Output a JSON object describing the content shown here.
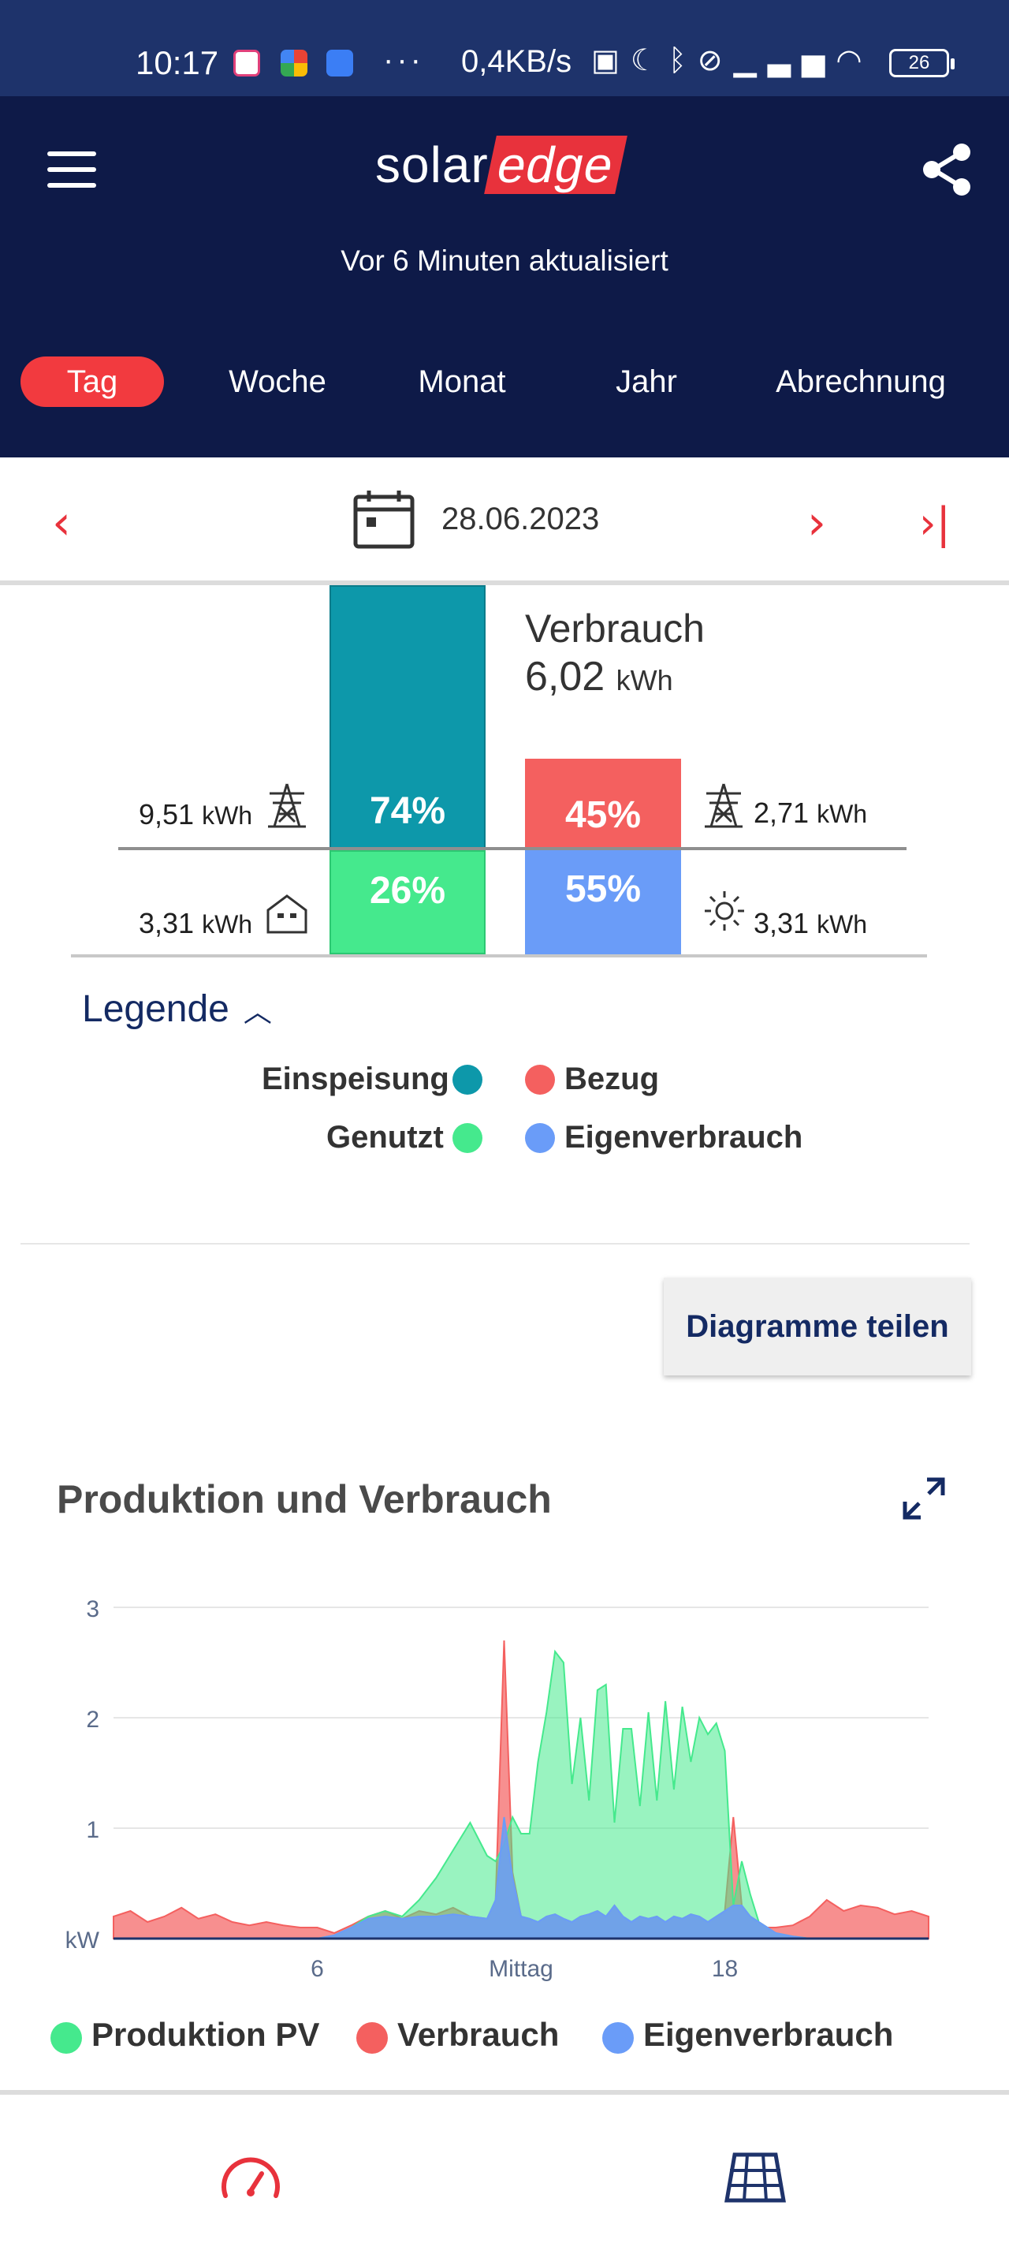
{
  "status_bar": {
    "time": "10:17",
    "more": "···",
    "network_speed": "0,4KB/s",
    "battery": "26"
  },
  "header": {
    "logo_part1": "solar",
    "logo_part2": "edge",
    "updated_text": "Vor 6 Minuten aktualisiert",
    "tabs": [
      {
        "label": "Tag",
        "active": true
      },
      {
        "label": "Woche",
        "active": false
      },
      {
        "label": "Monat",
        "active": false
      },
      {
        "label": "Jahr",
        "active": false
      },
      {
        "label": "Abrechnung",
        "active": false
      }
    ]
  },
  "date_nav": {
    "prev": "‹",
    "date": "28.06.2023",
    "next": "›",
    "last": "›|"
  },
  "energy": {
    "production": {
      "feed_in_value": "9,51",
      "feed_in_pct": "74%",
      "used_value": "3,31",
      "used_pct": "26%"
    },
    "consumption": {
      "title": "Verbrauch",
      "total": "6,02",
      "grid_value": "2,71",
      "grid_pct": "45%",
      "self_value": "3,31",
      "self_pct": "55%"
    },
    "unit": "kWh"
  },
  "legend": {
    "title": "Legende",
    "items": [
      {
        "label": "Einspeisung",
        "color": "#0d98aa"
      },
      {
        "label": "Bezug",
        "color": "#f4605f"
      },
      {
        "label": "Genutzt",
        "color": "#45e98d"
      },
      {
        "label": "Eigenverbrauch",
        "color": "#6a9cf8"
      }
    ]
  },
  "share_button": "Diagramme teilen",
  "chart_title": "Produktion und Verbrauch",
  "chart_data": {
    "type": "area",
    "title": "Produktion und Verbrauch",
    "ylabel": "kW",
    "ylim": [
      0,
      3
    ],
    "yticks": [
      "1",
      "2",
      "3"
    ],
    "xlim": [
      0,
      24
    ],
    "xticks": [
      {
        "x": 6,
        "label": "6"
      },
      {
        "x": 12,
        "label": "Mittag"
      },
      {
        "x": 18,
        "label": "18"
      }
    ],
    "x": [
      0,
      0.5,
      1,
      1.5,
      2,
      2.5,
      3,
      3.5,
      4,
      4.5,
      5,
      5.5,
      6,
      6.5,
      7,
      7.5,
      8,
      8.5,
      9,
      9.5,
      10,
      10.5,
      11,
      11.25,
      11.5,
      11.75,
      12,
      12.25,
      12.5,
      12.75,
      13,
      13.25,
      13.5,
      13.75,
      14,
      14.25,
      14.5,
      14.75,
      15,
      15.25,
      15.5,
      15.75,
      16,
      16.25,
      16.5,
      16.75,
      17,
      17.25,
      17.5,
      17.75,
      18,
      18.25,
      18.5,
      18.75,
      19,
      19.25,
      19.5,
      20,
      20.5,
      21,
      21.5,
      22,
      22.5,
      23,
      23.5,
      24
    ],
    "series": [
      {
        "name": "Produktion PV",
        "color": "#45e98d",
        "values": [
          0,
          0,
          0,
          0,
          0,
          0,
          0,
          0,
          0,
          0,
          0,
          0,
          0,
          0.03,
          0.1,
          0.2,
          0.25,
          0.2,
          0.35,
          0.55,
          0.8,
          1.05,
          0.75,
          0.7,
          0.85,
          1.1,
          0.95,
          0.95,
          1.6,
          2.05,
          2.6,
          2.5,
          1.4,
          2.0,
          1.25,
          2.25,
          2.3,
          1.05,
          1.9,
          1.9,
          1.2,
          2.05,
          1.25,
          2.15,
          1.35,
          2.1,
          1.6,
          2.0,
          1.85,
          1.95,
          1.7,
          0.3,
          0.7,
          0.4,
          0.15,
          0.1,
          0.05,
          0.02,
          0,
          0,
          0,
          0,
          0,
          0,
          0,
          0
        ]
      },
      {
        "name": "Verbrauch",
        "color": "#f4605f",
        "values": [
          0.2,
          0.25,
          0.15,
          0.2,
          0.28,
          0.18,
          0.22,
          0.15,
          0.12,
          0.15,
          0.12,
          0.1,
          0.1,
          0.05,
          0.12,
          0.2,
          0.25,
          0.18,
          0.25,
          0.22,
          0.28,
          0.2,
          0.18,
          0.35,
          2.7,
          0.6,
          0.2,
          0.18,
          0.15,
          0.2,
          0.22,
          0.18,
          0.15,
          0.2,
          0.22,
          0.25,
          0.2,
          0.3,
          0.2,
          0.15,
          0.2,
          0.18,
          0.2,
          0.15,
          0.2,
          0.18,
          0.22,
          0.2,
          0.15,
          0.2,
          0.25,
          1.1,
          0.3,
          0.2,
          0.15,
          0.1,
          0.1,
          0.12,
          0.2,
          0.35,
          0.25,
          0.3,
          0.28,
          0.22,
          0.25,
          0.2
        ]
      },
      {
        "name": "Eigenverbrauch",
        "color": "#6a9cf8",
        "values": [
          0,
          0,
          0,
          0,
          0,
          0,
          0,
          0,
          0,
          0,
          0,
          0,
          0,
          0.03,
          0.1,
          0.18,
          0.2,
          0.18,
          0.2,
          0.2,
          0.22,
          0.2,
          0.18,
          0.35,
          1.1,
          0.55,
          0.2,
          0.18,
          0.15,
          0.2,
          0.22,
          0.18,
          0.15,
          0.2,
          0.22,
          0.25,
          0.2,
          0.3,
          0.2,
          0.15,
          0.2,
          0.18,
          0.2,
          0.15,
          0.2,
          0.18,
          0.22,
          0.2,
          0.15,
          0.2,
          0.25,
          0.3,
          0.3,
          0.2,
          0.15,
          0.1,
          0.05,
          0.02,
          0,
          0,
          0,
          0,
          0,
          0,
          0,
          0
        ]
      }
    ]
  },
  "bottom_nav": [
    {
      "icon": "dashboard-gauge-icon",
      "color": "#e8323c"
    },
    {
      "icon": "solar-panel-layout-icon",
      "color": "#1e336b"
    }
  ]
}
